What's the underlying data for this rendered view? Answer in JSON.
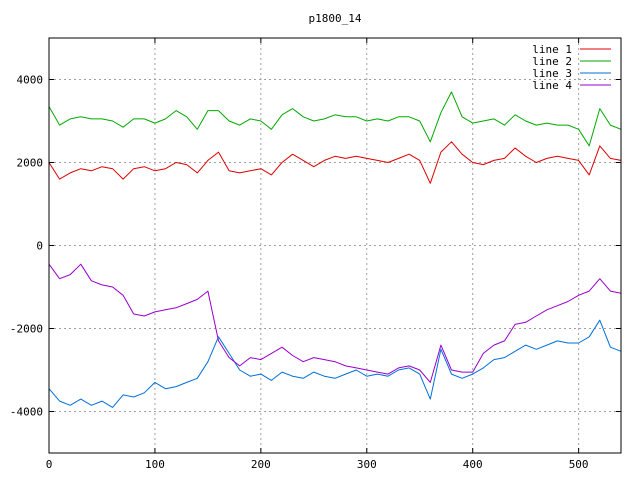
{
  "chart_data": {
    "type": "line",
    "title": "p1800_14",
    "xlabel": "",
    "ylabel": "",
    "xlim": [
      0,
      540
    ],
    "ylim": [
      -5000,
      5000
    ],
    "x_ticks": [
      0,
      100,
      200,
      300,
      400,
      500
    ],
    "y_ticks": [
      -4000,
      -2000,
      0,
      2000,
      4000
    ],
    "grid": true,
    "legend_position": "top-right",
    "series": [
      {
        "name": "line 1",
        "color": "#dd0000",
        "x": [
          0,
          10,
          20,
          30,
          40,
          50,
          60,
          70,
          80,
          90,
          100,
          110,
          120,
          130,
          140,
          150,
          160,
          170,
          180,
          190,
          200,
          210,
          220,
          230,
          240,
          250,
          260,
          270,
          280,
          290,
          300,
          310,
          320,
          330,
          340,
          350,
          360,
          370,
          380,
          390,
          400,
          410,
          420,
          430,
          440,
          450,
          460,
          470,
          480,
          490,
          500,
          510,
          520,
          530,
          540
        ],
        "y": [
          2000,
          1600,
          1750,
          1850,
          1800,
          1900,
          1850,
          1600,
          1850,
          1900,
          1800,
          1850,
          2000,
          1950,
          1750,
          2050,
          2250,
          1800,
          1750,
          1800,
          1850,
          1700,
          2000,
          2200,
          2050,
          1900,
          2050,
          2150,
          2100,
          2150,
          2100,
          2050,
          2000,
          2100,
          2200,
          2050,
          1500,
          2250,
          2500,
          2200,
          2000,
          1950,
          2050,
          2100,
          2350,
          2150,
          2000,
          2100,
          2150,
          2100,
          2050,
          1700,
          2400,
          2100,
          2050
        ]
      },
      {
        "name": "line 2",
        "color": "#00aa00",
        "x": [
          0,
          10,
          20,
          30,
          40,
          50,
          60,
          70,
          80,
          90,
          100,
          110,
          120,
          130,
          140,
          150,
          160,
          170,
          180,
          190,
          200,
          210,
          220,
          230,
          240,
          250,
          260,
          270,
          280,
          290,
          300,
          310,
          320,
          330,
          340,
          350,
          360,
          370,
          380,
          390,
          400,
          410,
          420,
          430,
          440,
          450,
          460,
          470,
          480,
          490,
          500,
          510,
          520,
          530,
          540
        ],
        "y": [
          3350,
          2900,
          3050,
          3100,
          3050,
          3050,
          3000,
          2850,
          3050,
          3050,
          2950,
          3050,
          3250,
          3100,
          2800,
          3250,
          3250,
          3000,
          2900,
          3050,
          3000,
          2800,
          3150,
          3300,
          3100,
          3000,
          3050,
          3150,
          3100,
          3100,
          3000,
          3050,
          3000,
          3100,
          3100,
          3000,
          2500,
          3200,
          3700,
          3100,
          2950,
          3000,
          3050,
          2900,
          3150,
          3000,
          2900,
          2950,
          2900,
          2900,
          2800,
          2400,
          3300,
          2900,
          2800
        ]
      },
      {
        "name": "line 3",
        "color": "#0070dd",
        "x": [
          0,
          10,
          20,
          30,
          40,
          50,
          60,
          70,
          80,
          90,
          100,
          110,
          120,
          130,
          140,
          150,
          160,
          170,
          180,
          190,
          200,
          210,
          220,
          230,
          240,
          250,
          260,
          270,
          280,
          290,
          300,
          310,
          320,
          330,
          340,
          350,
          360,
          370,
          380,
          390,
          400,
          410,
          420,
          430,
          440,
          450,
          460,
          470,
          480,
          490,
          500,
          510,
          520,
          530,
          540
        ],
        "y": [
          -3450,
          -3750,
          -3850,
          -3700,
          -3850,
          -3750,
          -3900,
          -3600,
          -3650,
          -3550,
          -3300,
          -3450,
          -3400,
          -3300,
          -3200,
          -2800,
          -2200,
          -2600,
          -3000,
          -3150,
          -3100,
          -3250,
          -3050,
          -3150,
          -3200,
          -3050,
          -3150,
          -3200,
          -3100,
          -3000,
          -3150,
          -3100,
          -3150,
          -3000,
          -2950,
          -3100,
          -3700,
          -2500,
          -3100,
          -3200,
          -3100,
          -2950,
          -2750,
          -2700,
          -2550,
          -2400,
          -2500,
          -2400,
          -2300,
          -2350,
          -2350,
          -2200,
          -1800,
          -2450,
          -2550
        ]
      },
      {
        "name": "line 4",
        "color": "#9900cc",
        "x": [
          0,
          10,
          20,
          30,
          40,
          50,
          60,
          70,
          80,
          90,
          100,
          110,
          120,
          130,
          140,
          150,
          160,
          170,
          180,
          190,
          200,
          210,
          220,
          230,
          240,
          250,
          260,
          270,
          280,
          290,
          300,
          310,
          320,
          330,
          340,
          350,
          360,
          370,
          380,
          390,
          400,
          410,
          420,
          430,
          440,
          450,
          460,
          470,
          480,
          490,
          500,
          510,
          520,
          530,
          540
        ],
        "y": [
          -450,
          -800,
          -700,
          -450,
          -850,
          -950,
          -1000,
          -1200,
          -1650,
          -1700,
          -1600,
          -1550,
          -1500,
          -1400,
          -1300,
          -1100,
          -2300,
          -2700,
          -2900,
          -2700,
          -2750,
          -2600,
          -2450,
          -2650,
          -2800,
          -2700,
          -2750,
          -2800,
          -2900,
          -2950,
          -3000,
          -3050,
          -3100,
          -2950,
          -2900,
          -3000,
          -3300,
          -2400,
          -3000,
          -3050,
          -3050,
          -2600,
          -2400,
          -2300,
          -1900,
          -1850,
          -1700,
          -1550,
          -1450,
          -1350,
          -1200,
          -1100,
          -800,
          -1100,
          -1150
        ]
      }
    ]
  }
}
